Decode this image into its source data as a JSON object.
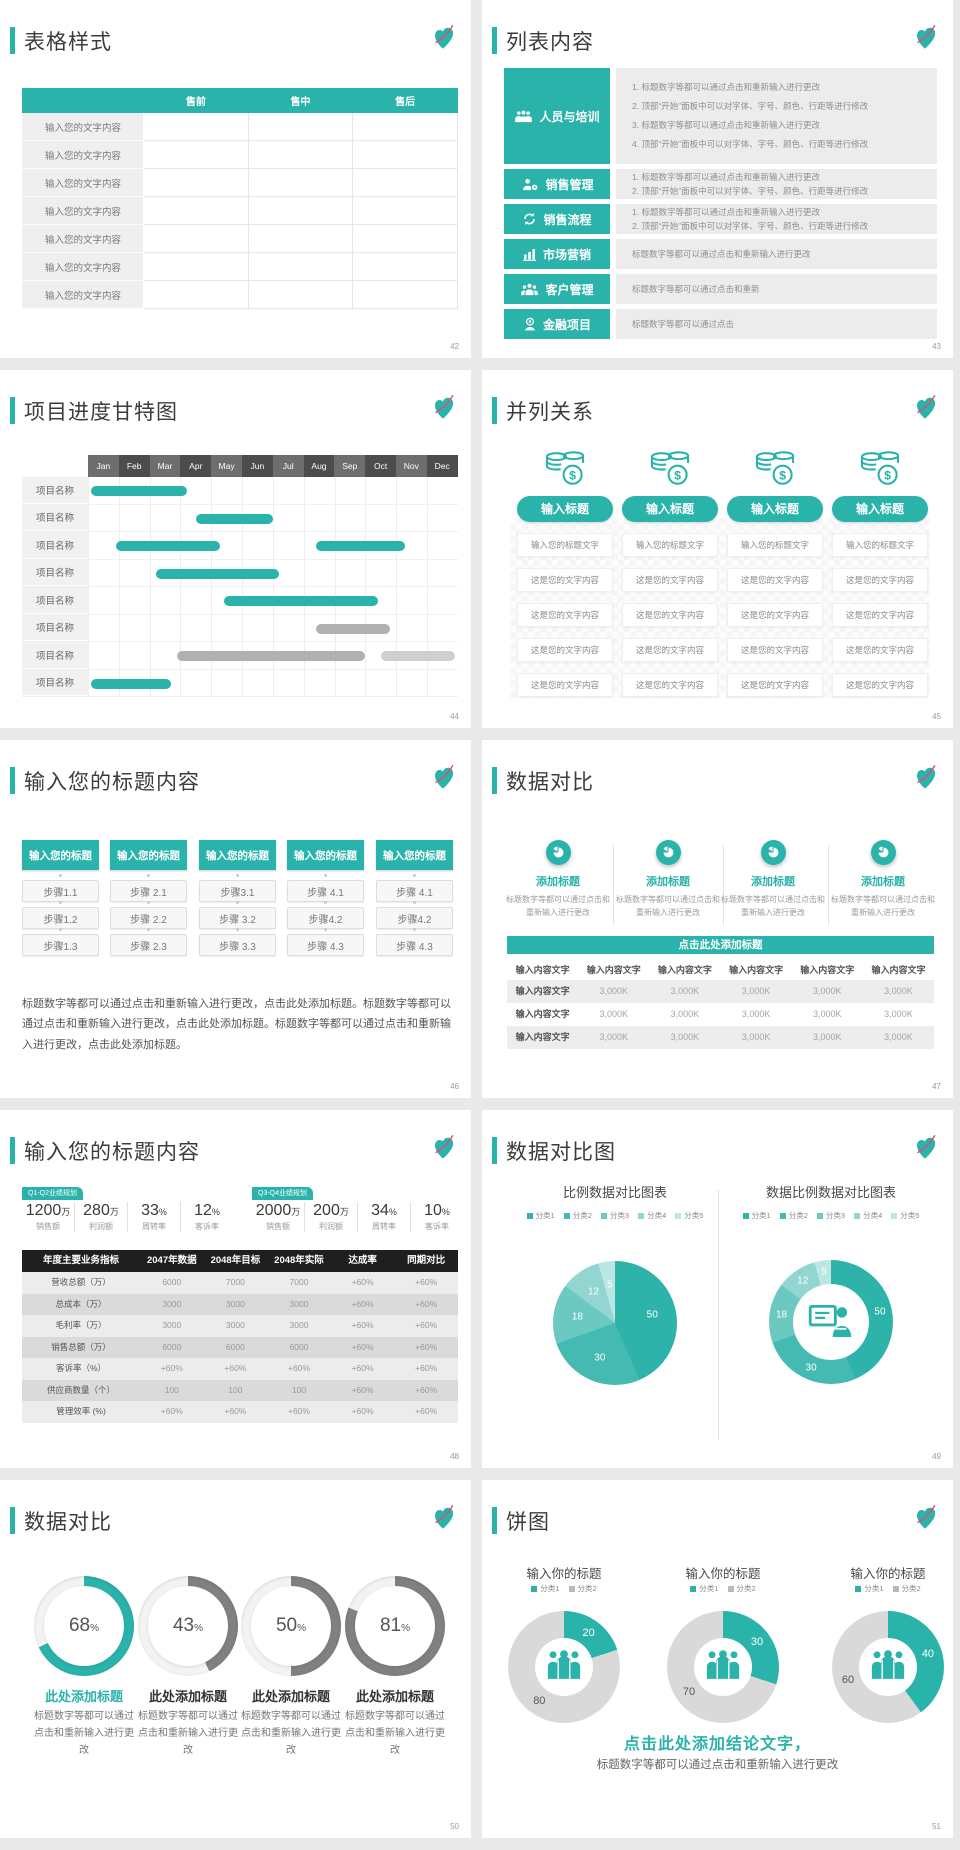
{
  "theme": {
    "teal": "#2AB3AB",
    "pink": "#E8486E",
    "gantt_bar_gray": "#b1b1b1",
    "gantt_bar_lightgray": "#cfcfcf",
    "dark_table_header": "#1f1f1f"
  },
  "slides": {
    "s42": {
      "title": "表格样式",
      "page": "42",
      "header_cols": [
        "售前",
        "售中",
        "售后"
      ],
      "row_labels": [
        "输入您的文字内容",
        "输入您的文字内容",
        "输入您的文字内容",
        "输入您的文字内容",
        "输入您的文字内容",
        "输入您的文字内容",
        "输入您的文字内容"
      ]
    },
    "s43": {
      "title": "列表内容",
      "page": "43",
      "items": [
        {
          "icon": "team-icon",
          "label": "人员与培训",
          "lines": [
            "1.  标题数字等都可以通过点击和重新输入进行更改",
            "2.  顶部“开始”面板中可以对字体、字号、颜色、行距等进行修改",
            "3.  标题数字等都可以通过点击和重新输入进行更改",
            "4.  顶部“开始”面板中可以对字体、字号、颜色、行距等进行修改"
          ]
        },
        {
          "icon": "user-gear-icon",
          "label": "销售管理",
          "lines": [
            "1.  标题数字等都可以通过点击和重新输入进行更改",
            "2.  顶部“开始”面板中可以对字体、字号、颜色、行距等进行修改"
          ]
        },
        {
          "icon": "sync-icon",
          "label": "销售流程",
          "lines": [
            "1.  标题数字等都可以通过点击和重新输入进行更改",
            "2.  顶部“开始”面板中可以对字体、字号、颜色、行距等进行修改"
          ]
        },
        {
          "icon": "bar-chart-icon",
          "label": "市场营销",
          "lines": [
            "标题数字等都可以通过点击和重新输入进行更改"
          ]
        },
        {
          "icon": "customers-icon",
          "label": "客户管理",
          "lines": [
            "标题数字等都可以通过点击和重新"
          ]
        },
        {
          "icon": "finance-icon",
          "label": "金融项目",
          "lines": [
            "标题数字等都可以通过点击"
          ]
        }
      ]
    },
    "s44": {
      "title": "项目进度甘特图",
      "page": "44",
      "months": [
        "Jan",
        "Feb",
        "Mar",
        "Apr",
        "May",
        "Jun",
        "Jul",
        "Aug",
        "Sep",
        "Oct",
        "Nov",
        "Dec"
      ],
      "row_labels": [
        "项目名称",
        "项目名称",
        "项目名称",
        "项目名称",
        "项目名称",
        "项目名称",
        "项目名称",
        "项目名称"
      ],
      "bars": [
        {
          "row": 0,
          "start": 1.1,
          "end": 4.2,
          "color": "teal"
        },
        {
          "row": 1,
          "start": 4.5,
          "end": 7.0,
          "color": "teal"
        },
        {
          "row": 2,
          "start": 1.9,
          "end": 5.3,
          "color": "teal"
        },
        {
          "row": 2,
          "start": 8.4,
          "end": 11.3,
          "color": "teal"
        },
        {
          "row": 3,
          "start": 3.2,
          "end": 7.2,
          "color": "teal"
        },
        {
          "row": 4,
          "start": 5.4,
          "end": 10.4,
          "color": "teal"
        },
        {
          "row": 5,
          "start": 8.4,
          "end": 10.8,
          "color": "gray"
        },
        {
          "row": 6,
          "start": 3.9,
          "end": 10.0,
          "color": "gray"
        },
        {
          "row": 6,
          "start": 10.5,
          "end": 12.9,
          "color": "lightgray"
        },
        {
          "row": 7,
          "start": 1.1,
          "end": 3.7,
          "color": "teal"
        }
      ]
    },
    "s45": {
      "title": "并列关系",
      "page": "45",
      "columns": 4,
      "icon": "coins-icon",
      "pill": "输入标题",
      "rows": [
        "输入您的标题文字",
        "这是您的文字内容",
        "这是您的文字内容",
        "这是您的文字内容",
        "这是您的文字内容"
      ]
    },
    "s46": {
      "title": "输入您的标题内容",
      "page": "46",
      "header": "输入您的标题",
      "columns": [
        [
          "步骤1.1",
          "步骤1.2",
          "步骤1.3"
        ],
        [
          "步骤 2.1",
          "步骤 2.2",
          "步骤 2.3"
        ],
        [
          "步骤3.1",
          "步骤 3.2",
          "步骤 3.3"
        ],
        [
          "步骤 4.1",
          "步骤4.2",
          "步骤 4.3"
        ],
        [
          "步骤 4.1",
          "步骤4.2",
          "步骤 4.3"
        ]
      ],
      "paragraph": "标题数字等都可以通过点击和重新输入进行更改，点击此处添加标题。标题数字等都可以通过点击和重新输入进行更改，点击此处添加标题。标题数字等都可以通过点击和重新输入进行更改，点击此处添加标题。"
    },
    "s47": {
      "title": "数据对比",
      "page": "47",
      "features": [
        {
          "icon": "pie-chart-icon",
          "heading": "添加标题",
          "text": "标题数字等都可以通过点击和重新输入进行更改"
        },
        {
          "icon": "pie-chart-icon",
          "heading": "添加标题",
          "text": "标题数字等都可以通过点击和重新输入进行更改"
        },
        {
          "icon": "pie-chart-icon",
          "heading": "添加标题",
          "text": "标题数字等都可以通过点击和重新输入进行更改"
        },
        {
          "icon": "pie-chart-icon",
          "heading": "添加标题",
          "text": "标题数字等都可以通过点击和重新输入进行更改"
        }
      ],
      "banner": "点击此处添加标题",
      "table": {
        "header": [
          "输入内容文字",
          "输入内容文字",
          "输入内容文字",
          "输入内容文字",
          "输入内容文字",
          "输入内容文字"
        ],
        "rows": [
          [
            "输入内容文字",
            "3,000K",
            "3,000K",
            "3,000K",
            "3,000K",
            "3,000K"
          ],
          [
            "输入内容文字",
            "3,000K",
            "3,000K",
            "3,000K",
            "3,000K",
            "3,000K"
          ],
          [
            "输入内容文字",
            "3,000K",
            "3,000K",
            "3,000K",
            "3,000K",
            "3,000K"
          ]
        ]
      }
    },
    "s48": {
      "title": "输入您的标题内容",
      "page": "48",
      "groups": [
        {
          "tag": "Q1-Q2业绩规划",
          "stats": [
            {
              "value": "1200",
              "unit": "万",
              "label": "销售额"
            },
            {
              "value": "280",
              "unit": "万",
              "label": "利润额"
            },
            {
              "value": "33",
              "unit": "%",
              "label": "周转率"
            },
            {
              "value": "12",
              "unit": "%",
              "label": "客诉率"
            }
          ]
        },
        {
          "tag": "Q3-Q4业绩规划",
          "stats": [
            {
              "value": "2000",
              "unit": "万",
              "label": "销售额"
            },
            {
              "value": "200",
              "unit": "万",
              "label": "利润额"
            },
            {
              "value": "34",
              "unit": "%",
              "label": "周转率"
            },
            {
              "value": "10",
              "unit": "%",
              "label": "客诉率"
            }
          ]
        }
      ],
      "table": {
        "header": [
          "年度主要业务指标",
          "2047年数据",
          "2048年目标",
          "2048年实际",
          "达成率",
          "同期对比"
        ],
        "rows": [
          [
            "营收总额（万）",
            "6000",
            "7000",
            "7000",
            "+60%",
            "+60%"
          ],
          [
            "总成本（万）",
            "3000",
            "3000",
            "3000",
            "+60%",
            "+60%"
          ],
          [
            "毛利率（万）",
            "3000",
            "3000",
            "3000",
            "+60%",
            "+60%"
          ],
          [
            "销售总额（万）",
            "6000",
            "6000",
            "6000",
            "+60%",
            "+60%"
          ],
          [
            "客诉率（%）",
            "+60%",
            "+60%",
            "+60%",
            "+60%",
            "+60%"
          ],
          [
            "供应商数量（个）",
            "100",
            "100",
            "100",
            "+60%",
            "+60%"
          ],
          [
            "管理效率 (%)",
            "+60%",
            "+60%",
            "+60%",
            "+60%",
            "+60%"
          ]
        ]
      }
    },
    "s49": {
      "title": "数据对比图",
      "page": "49",
      "legend": [
        "分类1",
        "分类2",
        "分类3",
        "分类4",
        "分类5"
      ],
      "values": [
        50,
        30,
        18,
        12,
        5
      ],
      "colors": [
        "#2eb3ab",
        "#45bab2",
        "#6cc9c2",
        "#93d6d1",
        "#bce6e3"
      ],
      "left_title": "比例数据对比图表",
      "right_title": "数据比例数据对比图表",
      "center_icon": "presenter-icon"
    },
    "s50": {
      "title": "数据对比",
      "page": "50",
      "heading": "此处添加标题",
      "text": "标题数字等都可以通过点击和重新输入进行更改",
      "items": [
        {
          "pct": 68,
          "accent": true
        },
        {
          "pct": 43,
          "accent": false
        },
        {
          "pct": 50,
          "accent": false
        },
        {
          "pct": 81,
          "accent": false
        }
      ]
    },
    "s51": {
      "title": "饼图",
      "page": "51",
      "center_icon": "people-icon",
      "charts": [
        {
          "title": "输入你的标题",
          "legend": [
            "分类1",
            "分类2"
          ],
          "teal_value": 20,
          "gray_value": 80
        },
        {
          "title": "输入你的标题",
          "legend": [
            "分类1",
            "分类2"
          ],
          "teal_value": 30,
          "gray_value": 70
        },
        {
          "title": "输入你的标题",
          "legend": [
            "分类1",
            "分类2"
          ],
          "teal_value": 40,
          "gray_value": 60
        }
      ],
      "gray": "#d9d9d9",
      "conclusion": "点击此处添加结论文字，",
      "conclusion_sub": "标题数字等都可以通过点击和重新输入进行更改"
    }
  }
}
